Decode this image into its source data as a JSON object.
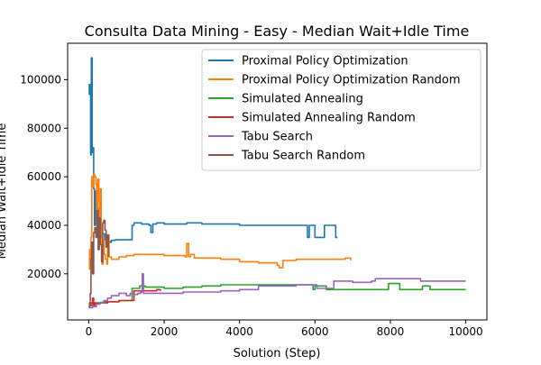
{
  "chart_data": {
    "type": "line",
    "title": "Consulta Data Mining - Easy - Median Wait+Idle Time",
    "xlabel": "Solution (Step)",
    "ylabel": "Median Wait+Idle Time",
    "xlim": [
      -560,
      10560
    ],
    "ylim": [
      1000,
      115000
    ],
    "xticks": [
      0,
      2000,
      4000,
      6000,
      8000,
      10000
    ],
    "yticks": [
      20000,
      40000,
      60000,
      80000,
      100000
    ],
    "xtick_labels": [
      "0",
      "2000",
      "4000",
      "6000",
      "8000",
      "10000"
    ],
    "ytick_labels": [
      "20000",
      "40000",
      "60000",
      "80000",
      "100000"
    ],
    "grid": false,
    "legend_position": "top-right",
    "series": [
      {
        "name": "Proximal Policy Optimization",
        "color": "#1f77b4",
        "points": [
          [
            0,
            98000
          ],
          [
            15,
            94000
          ],
          [
            30,
            98000
          ],
          [
            50,
            69000
          ],
          [
            70,
            109000
          ],
          [
            90,
            70000
          ],
          [
            110,
            72000
          ],
          [
            130,
            55000
          ],
          [
            150,
            40000
          ],
          [
            180,
            54000
          ],
          [
            210,
            47000
          ],
          [
            250,
            38000
          ],
          [
            300,
            36000
          ],
          [
            360,
            36500
          ],
          [
            420,
            34000
          ],
          [
            480,
            33000
          ],
          [
            520,
            33500
          ],
          [
            560,
            33000
          ],
          [
            600,
            33800
          ],
          [
            700,
            34000
          ],
          [
            1000,
            34000
          ],
          [
            1100,
            34000
          ],
          [
            1150,
            40000
          ],
          [
            1200,
            41000
          ],
          [
            1400,
            40500
          ],
          [
            1600,
            40000
          ],
          [
            1650,
            37000
          ],
          [
            1700,
            40500
          ],
          [
            1800,
            41000
          ],
          [
            2000,
            40500
          ],
          [
            2200,
            40500
          ],
          [
            2600,
            41000
          ],
          [
            3000,
            40500
          ],
          [
            3500,
            40500
          ],
          [
            4000,
            40000
          ],
          [
            5000,
            40000
          ],
          [
            5500,
            40000
          ],
          [
            5750,
            40000
          ],
          [
            5800,
            35000
          ],
          [
            5850,
            40000
          ],
          [
            5950,
            40000
          ],
          [
            6000,
            35000
          ],
          [
            6200,
            35000
          ],
          [
            6250,
            40000
          ],
          [
            6500,
            40000
          ],
          [
            6550,
            35000
          ],
          [
            6600,
            35000
          ]
        ]
      },
      {
        "name": "Proximal Policy Optimization Random",
        "color": "#ff7f0e",
        "points": [
          [
            0,
            22000
          ],
          [
            20,
            30000
          ],
          [
            40,
            22000
          ],
          [
            60,
            35000
          ],
          [
            80,
            60000
          ],
          [
            100,
            56000
          ],
          [
            130,
            61000
          ],
          [
            160,
            60000
          ],
          [
            190,
            57000
          ],
          [
            210,
            40000
          ],
          [
            240,
            59000
          ],
          [
            270,
            50000
          ],
          [
            290,
            36000
          ],
          [
            310,
            55000
          ],
          [
            330,
            35000
          ],
          [
            350,
            24000
          ],
          [
            380,
            34000
          ],
          [
            410,
            28000
          ],
          [
            440,
            26000
          ],
          [
            480,
            24000
          ],
          [
            500,
            36000
          ],
          [
            540,
            27000
          ],
          [
            600,
            26000
          ],
          [
            800,
            27000
          ],
          [
            1000,
            27500
          ],
          [
            1200,
            28000
          ],
          [
            1500,
            28000
          ],
          [
            1800,
            28000
          ],
          [
            2000,
            27500
          ],
          [
            2300,
            27500
          ],
          [
            2550,
            27000
          ],
          [
            2600,
            32500
          ],
          [
            2650,
            27000
          ],
          [
            2700,
            28000
          ],
          [
            2800,
            26500
          ],
          [
            3000,
            26500
          ],
          [
            3500,
            26000
          ],
          [
            4000,
            25000
          ],
          [
            4500,
            24500
          ],
          [
            5000,
            23500
          ],
          [
            5050,
            22500
          ],
          [
            5150,
            25500
          ],
          [
            5300,
            25500
          ],
          [
            5500,
            26000
          ],
          [
            6000,
            26000
          ],
          [
            6500,
            26000
          ],
          [
            6800,
            26500
          ],
          [
            6950,
            25500
          ]
        ]
      },
      {
        "name": "Simulated Annealing",
        "color": "#2ca02c",
        "points": [
          [
            0,
            7000
          ],
          [
            100,
            7800
          ],
          [
            200,
            8000
          ],
          [
            300,
            8200
          ],
          [
            400,
            8500
          ],
          [
            600,
            8500
          ],
          [
            800,
            9000
          ],
          [
            1000,
            9000
          ],
          [
            1150,
            14000
          ],
          [
            1300,
            14000
          ],
          [
            1350,
            15000
          ],
          [
            1500,
            14500
          ],
          [
            1800,
            14500
          ],
          [
            2000,
            14000
          ],
          [
            2500,
            14500
          ],
          [
            3000,
            15000
          ],
          [
            3500,
            15500
          ],
          [
            4000,
            15500
          ],
          [
            5000,
            15500
          ],
          [
            5500,
            15500
          ],
          [
            5900,
            15500
          ],
          [
            5950,
            13500
          ],
          [
            6000,
            15000
          ],
          [
            6200,
            15000
          ],
          [
            6300,
            13500
          ],
          [
            6500,
            13500
          ],
          [
            7000,
            13500
          ],
          [
            7500,
            13500
          ],
          [
            7900,
            13500
          ],
          [
            7950,
            16000
          ],
          [
            8200,
            16000
          ],
          [
            8250,
            13500
          ],
          [
            8500,
            13500
          ],
          [
            8800,
            13500
          ],
          [
            8850,
            15000
          ],
          [
            9000,
            15000
          ],
          [
            9050,
            13500
          ],
          [
            9500,
            13500
          ],
          [
            10000,
            13500
          ]
        ]
      },
      {
        "name": "Simulated Annealing Random",
        "color": "#d62728",
        "points": [
          [
            0,
            6500
          ],
          [
            30,
            7000
          ],
          [
            60,
            8000
          ],
          [
            100,
            10000
          ],
          [
            130,
            7000
          ],
          [
            160,
            8000
          ],
          [
            200,
            7800
          ],
          [
            300,
            8000
          ],
          [
            500,
            8500
          ],
          [
            800,
            9000
          ],
          [
            1100,
            9000
          ],
          [
            1200,
            13000
          ],
          [
            1500,
            13000
          ],
          [
            1800,
            13500
          ],
          [
            1900,
            13000
          ]
        ]
      },
      {
        "name": "Tabu Search",
        "color": "#9467bd",
        "points": [
          [
            0,
            6000
          ],
          [
            100,
            6500
          ],
          [
            200,
            7500
          ],
          [
            300,
            8000
          ],
          [
            400,
            9000
          ],
          [
            500,
            10000
          ],
          [
            600,
            11000
          ],
          [
            700,
            11000
          ],
          [
            800,
            12000
          ],
          [
            900,
            12000
          ],
          [
            1000,
            11000
          ],
          [
            1100,
            12000
          ],
          [
            1200,
            11500
          ],
          [
            1300,
            12000
          ],
          [
            1380,
            12500
          ],
          [
            1420,
            20000
          ],
          [
            1450,
            12000
          ],
          [
            1700,
            12000
          ],
          [
            2000,
            12000
          ],
          [
            2500,
            12500
          ],
          [
            3000,
            12500
          ],
          [
            3500,
            13000
          ],
          [
            4000,
            13500
          ],
          [
            4500,
            15000
          ],
          [
            5000,
            15000
          ],
          [
            5500,
            15500
          ],
          [
            6000,
            15500
          ],
          [
            6050,
            14000
          ],
          [
            6200,
            14000
          ],
          [
            6500,
            17000
          ],
          [
            7000,
            16500
          ],
          [
            7500,
            17000
          ],
          [
            7600,
            18000
          ],
          [
            8000,
            18000
          ],
          [
            8500,
            18000
          ],
          [
            8800,
            17000
          ],
          [
            9000,
            17000
          ],
          [
            9500,
            17000
          ],
          [
            10000,
            17000
          ]
        ]
      },
      {
        "name": "Tabu Search Random",
        "color": "#8c564b",
        "points": [
          [
            0,
            6500
          ],
          [
            20,
            8000
          ],
          [
            40,
            12000
          ],
          [
            60,
            26000
          ],
          [
            80,
            33000
          ],
          [
            100,
            20000
          ],
          [
            130,
            37000
          ],
          [
            160,
            39000
          ],
          [
            190,
            35000
          ],
          [
            220,
            46000
          ],
          [
            250,
            30000
          ],
          [
            280,
            43000
          ],
          [
            310,
            32000
          ],
          [
            340,
            25000
          ],
          [
            370,
            41000
          ],
          [
            400,
            42000
          ],
          [
            430,
            38000
          ],
          [
            460,
            31000
          ],
          [
            490,
            36000
          ],
          [
            520,
            27000
          ]
        ]
      }
    ]
  }
}
